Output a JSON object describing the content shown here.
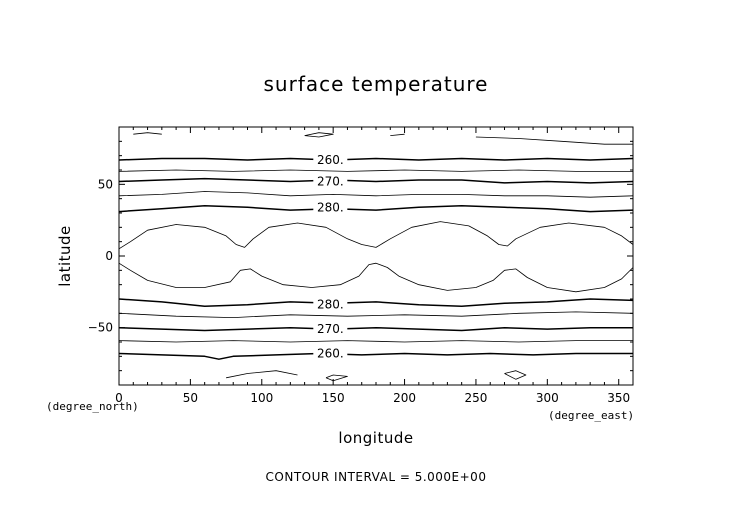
{
  "chart_data": {
    "type": "contour",
    "title": "surface temperature",
    "xlabel": "longitude",
    "ylabel": "latitude",
    "x_unit": "(degree_east)",
    "y_unit": "(degree_north)",
    "xlim": [
      0,
      360
    ],
    "ylim": [
      -90,
      90
    ],
    "xticks": [
      0,
      50,
      100,
      150,
      200,
      250,
      300,
      350
    ],
    "yticks": [
      -50,
      0,
      50
    ],
    "contour_interval_text": "CONTOUR INTERVAL = 5.000E+00",
    "labeled_contours": [
      {
        "text": "260.",
        "x": 148,
        "y": 67
      },
      {
        "text": "270.",
        "x": 148,
        "y": 52
      },
      {
        "text": "280.",
        "x": 148,
        "y": 34
      },
      {
        "text": "280.",
        "x": 148,
        "y": -34
      },
      {
        "text": "270.",
        "x": 148,
        "y": -51
      },
      {
        "text": "260.",
        "x": 148,
        "y": -68
      }
    ],
    "contours": [
      {
        "level": 260,
        "bold": true,
        "points": [
          [
            0,
            67
          ],
          [
            30,
            68
          ],
          [
            60,
            68
          ],
          [
            90,
            67
          ],
          [
            120,
            68
          ],
          [
            150,
            67
          ],
          [
            180,
            68
          ],
          [
            210,
            67
          ],
          [
            240,
            68
          ],
          [
            270,
            67
          ],
          [
            300,
            68
          ],
          [
            330,
            67
          ],
          [
            360,
            68
          ]
        ]
      },
      {
        "level": 265,
        "bold": false,
        "points": [
          [
            0,
            59
          ],
          [
            40,
            60
          ],
          [
            80,
            59
          ],
          [
            120,
            60
          ],
          [
            160,
            59
          ],
          [
            200,
            60
          ],
          [
            240,
            59
          ],
          [
            280,
            60
          ],
          [
            320,
            59
          ],
          [
            360,
            59
          ]
        ]
      },
      {
        "level": 270,
        "bold": true,
        "points": [
          [
            0,
            52
          ],
          [
            30,
            53
          ],
          [
            60,
            54
          ],
          [
            90,
            53
          ],
          [
            120,
            52
          ],
          [
            150,
            53
          ],
          [
            180,
            52
          ],
          [
            210,
            53
          ],
          [
            240,
            53
          ],
          [
            270,
            51
          ],
          [
            300,
            52
          ],
          [
            330,
            51
          ],
          [
            360,
            52
          ]
        ]
      },
      {
        "level": 275,
        "bold": false,
        "points": [
          [
            0,
            42
          ],
          [
            30,
            43
          ],
          [
            60,
            45
          ],
          [
            90,
            44
          ],
          [
            120,
            42
          ],
          [
            150,
            43
          ],
          [
            180,
            42
          ],
          [
            210,
            43
          ],
          [
            240,
            43
          ],
          [
            270,
            42
          ],
          [
            300,
            42
          ],
          [
            330,
            41
          ],
          [
            360,
            42
          ]
        ]
      },
      {
        "level": 280,
        "bold": true,
        "points": [
          [
            0,
            31
          ],
          [
            30,
            33
          ],
          [
            60,
            35
          ],
          [
            90,
            34
          ],
          [
            120,
            32
          ],
          [
            150,
            33
          ],
          [
            180,
            32
          ],
          [
            210,
            34
          ],
          [
            240,
            35
          ],
          [
            270,
            34
          ],
          [
            300,
            33
          ],
          [
            330,
            31
          ],
          [
            360,
            32
          ]
        ]
      },
      {
        "level": 285,
        "bold": false,
        "points": [
          [
            0,
            5
          ],
          [
            8,
            10
          ],
          [
            20,
            18
          ],
          [
            40,
            22
          ],
          [
            60,
            20
          ],
          [
            75,
            14
          ],
          [
            82,
            8
          ],
          [
            88,
            6
          ],
          [
            94,
            12
          ],
          [
            105,
            20
          ],
          [
            125,
            23
          ],
          [
            145,
            20
          ],
          [
            160,
            12
          ],
          [
            170,
            8
          ],
          [
            180,
            6
          ],
          [
            190,
            12
          ],
          [
            205,
            20
          ],
          [
            225,
            24
          ],
          [
            245,
            21
          ],
          [
            258,
            14
          ],
          [
            266,
            8
          ],
          [
            272,
            7
          ],
          [
            278,
            12
          ],
          [
            295,
            20
          ],
          [
            315,
            23
          ],
          [
            340,
            20
          ],
          [
            352,
            14
          ],
          [
            360,
            8
          ]
        ]
      },
      {
        "level": 285,
        "bold": false,
        "points": [
          [
            0,
            -5
          ],
          [
            8,
            -10
          ],
          [
            20,
            -17
          ],
          [
            40,
            -22
          ],
          [
            60,
            -22
          ],
          [
            78,
            -18
          ],
          [
            85,
            -10
          ],
          [
            92,
            -9
          ],
          [
            100,
            -14
          ],
          [
            115,
            -20
          ],
          [
            135,
            -22
          ],
          [
            155,
            -20
          ],
          [
            168,
            -14
          ],
          [
            175,
            -6
          ],
          [
            180,
            -5
          ],
          [
            188,
            -8
          ],
          [
            196,
            -14
          ],
          [
            210,
            -20
          ],
          [
            230,
            -24
          ],
          [
            250,
            -22
          ],
          [
            262,
            -17
          ],
          [
            270,
            -10
          ],
          [
            278,
            -9
          ],
          [
            286,
            -15
          ],
          [
            300,
            -22
          ],
          [
            320,
            -25
          ],
          [
            340,
            -22
          ],
          [
            352,
            -16
          ],
          [
            360,
            -8
          ]
        ]
      },
      {
        "level": 280,
        "bold": true,
        "points": [
          [
            0,
            -30
          ],
          [
            30,
            -32
          ],
          [
            60,
            -35
          ],
          [
            90,
            -34
          ],
          [
            120,
            -32
          ],
          [
            150,
            -33
          ],
          [
            180,
            -32
          ],
          [
            210,
            -34
          ],
          [
            240,
            -35
          ],
          [
            270,
            -33
          ],
          [
            300,
            -32
          ],
          [
            330,
            -30
          ],
          [
            360,
            -31
          ]
        ]
      },
      {
        "level": 275,
        "bold": false,
        "points": [
          [
            0,
            -40
          ],
          [
            40,
            -42
          ],
          [
            80,
            -43
          ],
          [
            120,
            -41
          ],
          [
            160,
            -42
          ],
          [
            200,
            -41
          ],
          [
            240,
            -42
          ],
          [
            280,
            -40
          ],
          [
            320,
            -39
          ],
          [
            360,
            -40
          ]
        ]
      },
      {
        "level": 270,
        "bold": true,
        "points": [
          [
            0,
            -50
          ],
          [
            30,
            -51
          ],
          [
            60,
            -52
          ],
          [
            90,
            -51
          ],
          [
            120,
            -50
          ],
          [
            150,
            -51
          ],
          [
            180,
            -50
          ],
          [
            210,
            -51
          ],
          [
            240,
            -52
          ],
          [
            270,
            -50
          ],
          [
            300,
            -51
          ],
          [
            330,
            -50
          ],
          [
            360,
            -50
          ]
        ]
      },
      {
        "level": 265,
        "bold": false,
        "points": [
          [
            0,
            -59
          ],
          [
            40,
            -60
          ],
          [
            80,
            -59
          ],
          [
            120,
            -60
          ],
          [
            160,
            -59
          ],
          [
            200,
            -60
          ],
          [
            240,
            -59
          ],
          [
            280,
            -60
          ],
          [
            320,
            -59
          ],
          [
            360,
            -59
          ]
        ]
      },
      {
        "level": 260,
        "bold": true,
        "points": [
          [
            0,
            -68
          ],
          [
            30,
            -69
          ],
          [
            60,
            -70
          ],
          [
            70,
            -72
          ],
          [
            80,
            -70
          ],
          [
            110,
            -69
          ],
          [
            140,
            -68
          ],
          [
            170,
            -69
          ],
          [
            200,
            -68
          ],
          [
            230,
            -69
          ],
          [
            260,
            -68
          ],
          [
            290,
            -69
          ],
          [
            320,
            -68
          ],
          [
            360,
            -68
          ]
        ]
      },
      {
        "level": 255,
        "bold": false,
        "points": [
          [
            10,
            85
          ],
          [
            20,
            86
          ],
          [
            30,
            85
          ]
        ]
      },
      {
        "level": 255,
        "bold": false,
        "points": [
          [
            130,
            84
          ],
          [
            140,
            86
          ],
          [
            150,
            85
          ],
          [
            140,
            83
          ],
          [
            130,
            84
          ]
        ]
      },
      {
        "level": 255,
        "bold": false,
        "points": [
          [
            190,
            84
          ],
          [
            200,
            85
          ]
        ]
      },
      {
        "level": 255,
        "bold": false,
        "points": [
          [
            250,
            83
          ],
          [
            280,
            82
          ],
          [
            310,
            80
          ],
          [
            340,
            78
          ],
          [
            360,
            78
          ]
        ]
      },
      {
        "level": 255,
        "bold": false,
        "points": [
          [
            75,
            -85
          ],
          [
            90,
            -82
          ],
          [
            110,
            -80
          ],
          [
            125,
            -83
          ]
        ]
      },
      {
        "level": 255,
        "bold": false,
        "points": [
          [
            145,
            -85
          ],
          [
            150,
            -83
          ],
          [
            160,
            -84
          ],
          [
            150,
            -87
          ],
          [
            145,
            -85
          ]
        ]
      },
      {
        "level": 255,
        "bold": false,
        "points": [
          [
            270,
            -82
          ],
          [
            278,
            -80
          ],
          [
            285,
            -83
          ],
          [
            278,
            -86
          ],
          [
            270,
            -82
          ]
        ]
      }
    ]
  }
}
